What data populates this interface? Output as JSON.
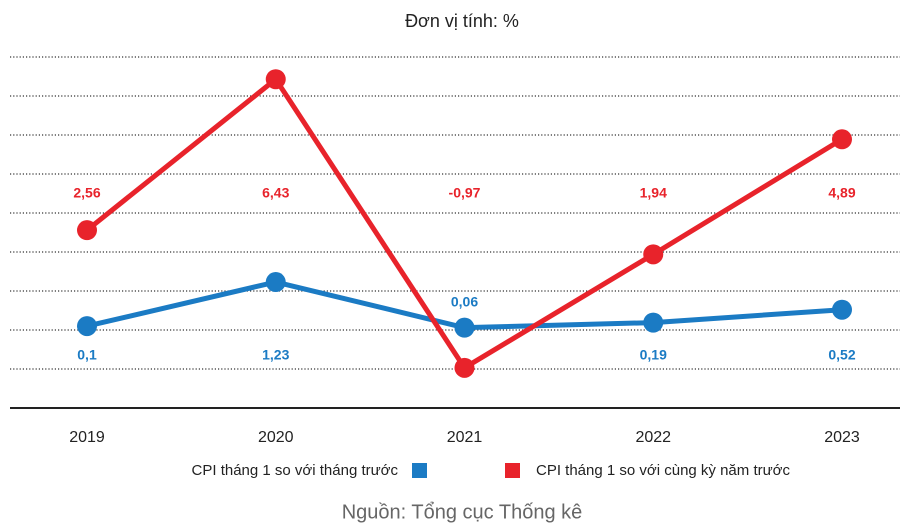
{
  "chart_data": {
    "type": "line",
    "subtitle": "Đơn vị tính: %",
    "categories": [
      "2019",
      "2020",
      "2021",
      "2022",
      "2023"
    ],
    "series": [
      {
        "name": "CPI tháng 1 so với tháng trước",
        "color": "#1b7bc4",
        "values": [
          0.1,
          1.23,
          0.06,
          0.19,
          0.52
        ],
        "value_labels": [
          "0,1",
          "1,23",
          "0,06",
          "0,19",
          "0,52"
        ]
      },
      {
        "name": "CPI tháng 1 so với cùng kỳ năm trước",
        "color": "#e8232b",
        "values": [
          2.56,
          6.43,
          -0.97,
          1.94,
          4.89
        ],
        "value_labels": [
          "2,56",
          "6,43",
          "-0,97",
          "1,94",
          "4,89"
        ]
      }
    ],
    "ylim": [
      -2,
      7
    ],
    "yticks": [
      -1,
      0,
      1,
      2,
      3,
      4,
      5,
      6,
      7
    ],
    "grid": true,
    "source": "Nguồn: Tổng cục Thống kê"
  }
}
